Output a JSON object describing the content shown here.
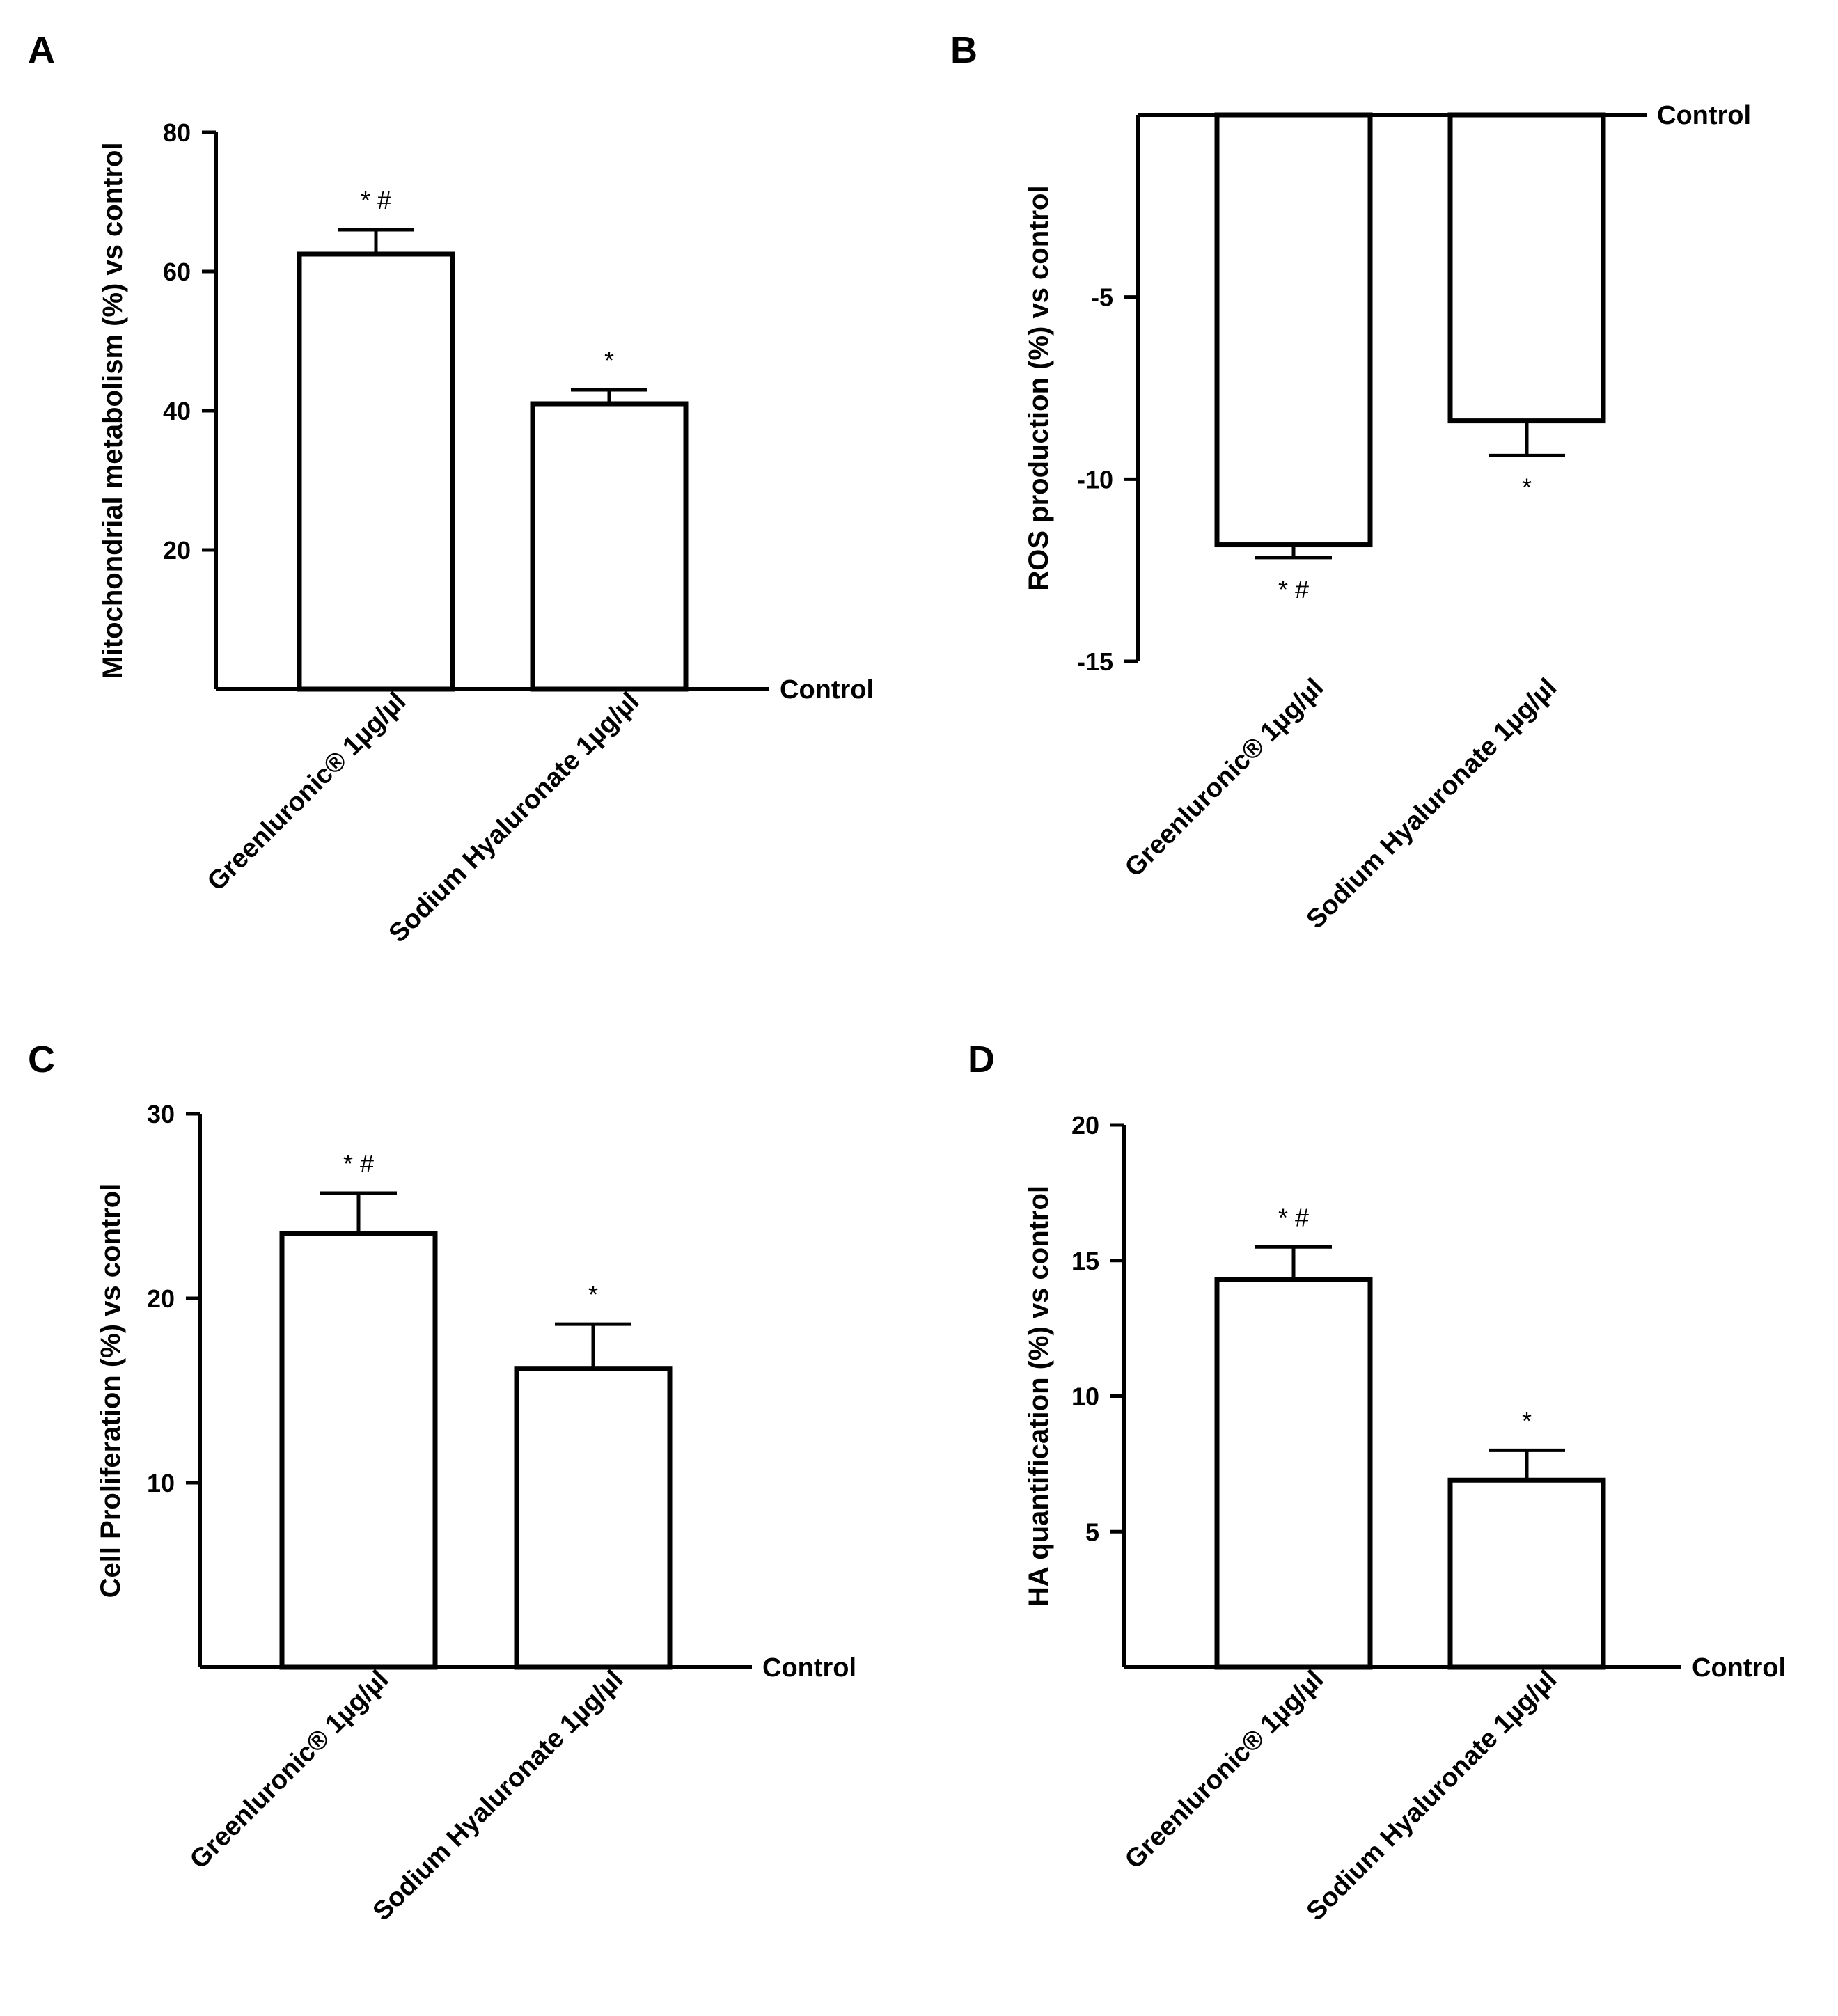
{
  "colors": {
    "ink": "#000000",
    "bar_fill": "#ffffff"
  },
  "chart_data": [
    {
      "panel": "A",
      "type": "bar",
      "ylabel": "Mitochondrial metabolism (%) vs control",
      "baseline_label": "Control",
      "ylim": [
        0,
        80
      ],
      "yticks": [
        20,
        40,
        60,
        80
      ],
      "categories": [
        "Greenluronic® 1µg/µl",
        "Sodium Hyaluronate 1µg/µl"
      ],
      "values": [
        62.5,
        41
      ],
      "errors": [
        3.5,
        2
      ],
      "significance": [
        "* #",
        "*"
      ]
    },
    {
      "panel": "B",
      "type": "bar",
      "ylabel": "ROS production (%) vs control",
      "baseline_label": "Control",
      "ylim": [
        -15,
        0
      ],
      "yticks": [
        -5,
        -10,
        -15
      ],
      "categories": [
        "Greenluronic® 1µg/µl",
        "Sodium Hyaluronate 1µg/µl"
      ],
      "values": [
        -11.8,
        -8.4
      ],
      "errors": [
        0.35,
        0.95
      ],
      "significance": [
        "* #",
        "*"
      ]
    },
    {
      "panel": "C",
      "type": "bar",
      "ylabel": "Cell Proliferation (%) vs control",
      "baseline_label": "Control",
      "ylim": [
        0,
        30
      ],
      "yticks": [
        10,
        20,
        30
      ],
      "categories": [
        "Greenluronic® 1µg/µl",
        "Sodium Hyaluronate 1µg/µl"
      ],
      "values": [
        23.5,
        16.2
      ],
      "errors": [
        2.2,
        2.4
      ],
      "significance": [
        "* #",
        "*"
      ]
    },
    {
      "panel": "D",
      "type": "bar",
      "ylabel": "HA quantification (%) vs control",
      "baseline_label": "Control",
      "ylim": [
        0,
        20
      ],
      "yticks": [
        5,
        10,
        15,
        20
      ],
      "categories": [
        "Greenluronic® 1µg/µl",
        "Sodium Hyaluronate 1µg/µl"
      ],
      "values": [
        14.3,
        6.9
      ],
      "errors": [
        1.2,
        1.1
      ],
      "significance": [
        "* #",
        "*"
      ]
    }
  ]
}
